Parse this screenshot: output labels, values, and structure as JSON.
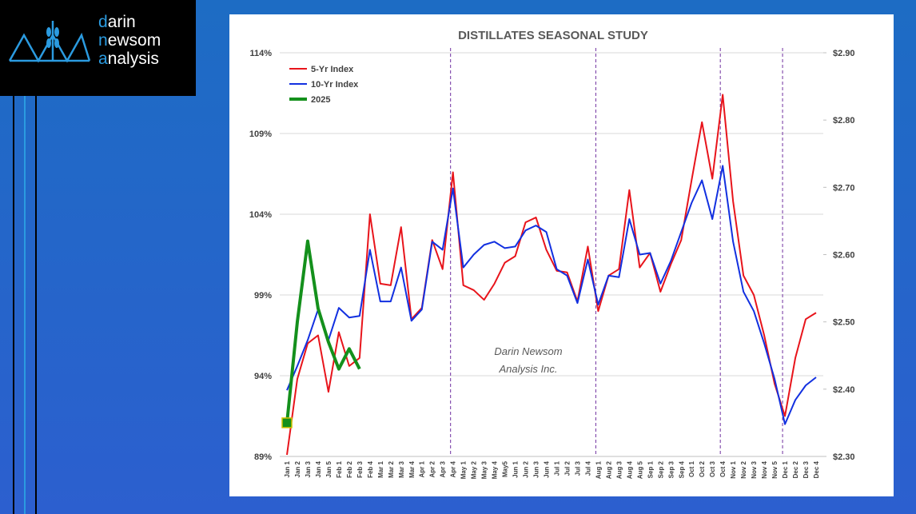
{
  "logo": {
    "lines": [
      "darin",
      "newsom",
      "analysis"
    ]
  },
  "chart_data": {
    "type": "line",
    "title": "DISTILLATES SEASONAL STUDY",
    "annotation": [
      "Darin Newsom",
      "Analysis Inc."
    ],
    "categories": [
      "Jan 1",
      "Jan 2",
      "Jan 3",
      "Jan 4",
      "Jan 5",
      "Feb 1",
      "Feb 2",
      "Feb 3",
      "Feb 4",
      "Mar 1",
      "Mar 2",
      "Mar 3",
      "Mar 4",
      "Apr 1",
      "Apr 2",
      "Apr 3",
      "Apr 4",
      "May 1",
      "May 2",
      "May 3",
      "May 4",
      "May5",
      "Jun 1",
      "Jun 2",
      "Jun 3",
      "Jun 4",
      "Jul 1",
      "Jul 2",
      "Jul 3",
      "Jul 4",
      "Aug 1",
      "Aug 2",
      "Aug 3",
      "Aug 4",
      "Aug 5",
      "Sep 1",
      "Sep 2",
      "Sep 3",
      "Sep 4",
      "Oct 1",
      "Oct 2",
      "Oct 3",
      "Oct 4",
      "Nov 1",
      "Nov 2",
      "Nov 3",
      "Nov 4",
      "Nov 5",
      "Dec 1",
      "Dec 2",
      "Dec 3",
      "Dec 4"
    ],
    "series": [
      {
        "name": "5-Yr Index",
        "color": "#e8141b",
        "values": [
          89.1,
          93.8,
          96.0,
          96.5,
          93.0,
          96.7,
          94.6,
          95.1,
          104.0,
          99.7,
          99.6,
          103.2,
          97.5,
          98.2,
          102.4,
          100.6,
          106.6,
          99.6,
          99.3,
          98.7,
          99.7,
          101.0,
          101.4,
          103.5,
          103.8,
          101.8,
          100.5,
          100.4,
          98.6,
          102.0,
          98.0,
          100.2,
          100.6,
          105.5,
          100.7,
          101.6,
          99.2,
          100.9,
          102.4,
          106.1,
          109.7,
          106.2,
          111.4,
          104.8,
          100.2,
          99.0,
          96.5,
          93.5,
          91.5,
          95.1,
          97.5,
          97.9
        ]
      },
      {
        "name": "10-Yr Index",
        "color": "#1230e0",
        "values": [
          93.1,
          94.6,
          96.2,
          98.1,
          96.2,
          98.2,
          97.6,
          97.7,
          101.8,
          98.6,
          98.6,
          100.7,
          97.4,
          98.1,
          102.3,
          101.8,
          105.6,
          100.7,
          101.5,
          102.1,
          102.3,
          101.9,
          102.0,
          103.0,
          103.3,
          102.9,
          100.6,
          100.2,
          98.5,
          101.2,
          98.4,
          100.2,
          100.1,
          103.7,
          101.5,
          101.6,
          99.7,
          101.1,
          102.9,
          104.7,
          106.1,
          103.7,
          107.0,
          102.3,
          99.2,
          98.0,
          96.0,
          93.8,
          91.0,
          92.5,
          93.4,
          93.9
        ]
      },
      {
        "name": "2025",
        "color": "#14901c",
        "axis": "y2",
        "values": [
          2.35,
          2.5,
          2.62,
          2.52,
          2.47,
          2.43,
          2.46,
          2.43,
          null,
          null,
          null,
          null,
          null,
          null,
          null,
          null,
          null,
          null,
          null,
          null,
          null,
          null,
          null,
          null,
          null,
          null,
          null,
          null,
          null,
          null,
          null,
          null,
          null,
          null,
          null,
          null,
          null,
          null,
          null,
          null,
          null,
          null,
          null,
          null,
          null,
          null,
          null,
          null,
          null,
          null,
          null,
          null
        ]
      }
    ],
    "ylim": [
      89,
      114
    ],
    "yticks": [
      {
        "value": 89,
        "label": "89%"
      },
      {
        "value": 94,
        "label": "94%"
      },
      {
        "value": 99,
        "label": "99%"
      },
      {
        "value": 104,
        "label": "104%"
      },
      {
        "value": 109,
        "label": "109%"
      },
      {
        "value": 114,
        "label": "114%"
      }
    ],
    "y2lim": [
      2.3,
      2.9
    ],
    "y2ticks": [
      {
        "value": 2.3,
        "label": "$2.30"
      },
      {
        "value": 2.4,
        "label": "$2.40"
      },
      {
        "value": 2.5,
        "label": "$2.50"
      },
      {
        "value": 2.6,
        "label": "$2.60"
      },
      {
        "value": 2.7,
        "label": "$2.70"
      },
      {
        "value": 2.8,
        "label": "$2.80"
      },
      {
        "value": 2.9,
        "label": "$2.90"
      }
    ],
    "grid": true,
    "legend": "upper left",
    "vline_categories": [
      16,
      30,
      42,
      48
    ],
    "vline_color": "#7030a0"
  }
}
